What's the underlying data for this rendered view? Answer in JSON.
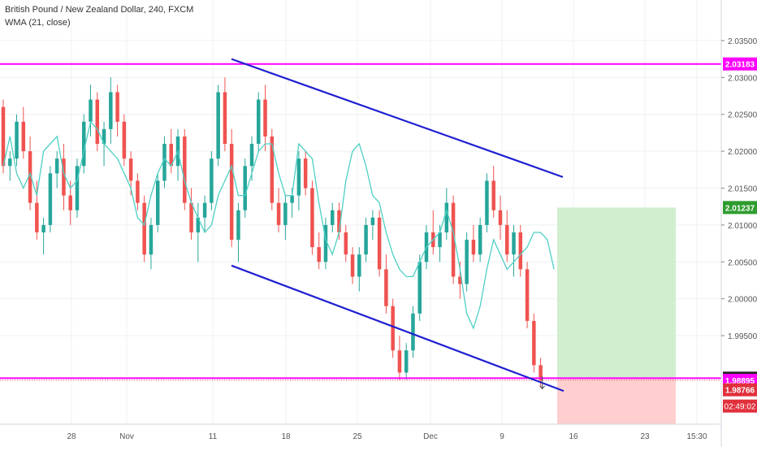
{
  "chart_data": {
    "type": "candlestick",
    "title": "British Pound / New Zealand Dollar, 240, FXCM",
    "indicator": "WMA (21, close)",
    "ylim": [
      1.983,
      2.0405
    ],
    "y_ticks": [
      "2.03500",
      "2.03000",
      "2.02500",
      "2.02000",
      "2.01500",
      "2.01000",
      "2.00500",
      "2.00000",
      "1.99500"
    ],
    "x_ticks": [
      "28",
      "Nov",
      "11",
      "18",
      "25",
      "Dec",
      "9",
      "16",
      "23",
      "15:30"
    ],
    "colors": {
      "up": "#26a69a",
      "down": "#ef5350",
      "wma": "#4dd0c4",
      "channel": "#1f1fd1",
      "level": "#ff00ff",
      "target": "#c9ebc7",
      "stop": "#ffc7c7",
      "current": "#ef5350"
    },
    "levels": [
      {
        "name": "resistance",
        "value": 2.03183,
        "label": "2.03183"
      },
      {
        "name": "support",
        "value": 1.98924,
        "label": "1.98924"
      }
    ],
    "current_price": {
      "value": 1.98895,
      "label": "1.98895"
    },
    "position": {
      "entry": 1.98924,
      "target": 2.01237,
      "target_label": "2.01237",
      "stop": 1.98766,
      "stop_label": "1.98766",
      "timer": "02:49:02"
    },
    "channel": {
      "upper": [
        {
          "x": "Nov 12",
          "y": 2.0325
        },
        {
          "x": "Dec 12",
          "y": 2.0165
        }
      ],
      "lower": [
        {
          "x": "Nov 12",
          "y": 2.0045
        },
        {
          "x": "Dec 14",
          "y": 1.9875
        }
      ]
    },
    "wma": [
      2.018,
      2.022,
      2.017,
      2.015,
      2.017,
      2.014,
      2.02,
      2.021,
      2.022,
      2.017,
      2.015,
      2.016,
      2.02,
      2.024,
      2.023,
      2.021,
      2.02,
      2.019,
      2.017,
      2.015,
      2.011,
      2.01,
      2.014,
      2.017,
      2.019,
      2.018,
      2.02,
      2.016,
      2.013,
      2.011,
      2.009,
      2.01,
      2.014,
      2.016,
      2.018,
      2.014,
      2.014,
      2.017,
      2.02,
      2.021,
      2.021,
      2.017,
      2.014,
      2.014,
      2.021,
      2.02,
      2.019,
      2.013,
      2.008,
      2.006,
      2.009,
      2.016,
      2.02,
      2.021,
      2.018,
      2.014,
      2.013,
      2.009,
      2.006,
      2.004,
      2.003,
      2.003,
      2.005,
      2.007,
      2.008,
      2.009,
      2.012,
      2.009,
      2.004,
      1.998,
      1.996,
      1.999,
      2.004,
      2.008,
      2.006,
      2.004,
      2.005,
      2.006,
      2.007,
      2.009,
      2.009,
      2.008,
      2.004
    ],
    "candles": [
      [
        2.026,
        2.027,
        2.017,
        2.018
      ],
      [
        2.018,
        2.02,
        2.016,
        2.019
      ],
      [
        2.019,
        2.025,
        2.018,
        2.024
      ],
      [
        2.024,
        2.026,
        2.019,
        2.02
      ],
      [
        2.02,
        2.022,
        2.012,
        2.013
      ],
      [
        2.013,
        2.016,
        2.008,
        2.009
      ],
      [
        2.009,
        2.011,
        2.006,
        2.01
      ],
      [
        2.01,
        2.018,
        2.009,
        2.017
      ],
      [
        2.017,
        2.02,
        2.015,
        2.019
      ],
      [
        2.019,
        2.021,
        2.012,
        2.014
      ],
      [
        2.014,
        2.016,
        2.01,
        2.012
      ],
      [
        2.012,
        2.019,
        2.011,
        2.018
      ],
      [
        2.018,
        2.025,
        2.017,
        2.024
      ],
      [
        2.024,
        2.029,
        2.022,
        2.027
      ],
      [
        2.027,
        2.028,
        2.02,
        2.021
      ],
      [
        2.021,
        2.024,
        2.018,
        2.023
      ],
      [
        2.023,
        2.03,
        2.021,
        2.028
      ],
      [
        2.028,
        2.029,
        2.022,
        2.024
      ],
      [
        2.024,
        2.025,
        2.018,
        2.019
      ],
      [
        2.019,
        2.02,
        2.014,
        2.016
      ],
      [
        2.016,
        2.017,
        2.012,
        2.013
      ],
      [
        2.013,
        2.014,
        2.005,
        2.006
      ],
      [
        2.006,
        2.011,
        2.004,
        2.01
      ],
      [
        2.01,
        2.017,
        2.009,
        2.016
      ],
      [
        2.016,
        2.022,
        2.015,
        2.021
      ],
      [
        2.021,
        2.023,
        2.017,
        2.018
      ],
      [
        2.018,
        2.023,
        2.016,
        2.022
      ],
      [
        2.022,
        2.023,
        2.012,
        2.013
      ],
      [
        2.013,
        2.015,
        2.008,
        2.009
      ],
      [
        2.009,
        2.013,
        2.005,
        2.011
      ],
      [
        2.011,
        2.014,
        2.009,
        2.013
      ],
      [
        2.013,
        2.02,
        2.012,
        2.019
      ],
      [
        2.019,
        2.029,
        2.018,
        2.028
      ],
      [
        2.028,
        2.03,
        2.02,
        2.021
      ],
      [
        2.021,
        2.023,
        2.007,
        2.008
      ],
      [
        2.008,
        2.013,
        2.005,
        2.012
      ],
      [
        2.012,
        2.019,
        2.011,
        2.018
      ],
      [
        2.018,
        2.022,
        2.016,
        2.021
      ],
      [
        2.021,
        2.028,
        2.02,
        2.027
      ],
      [
        2.027,
        2.029,
        2.02,
        2.022
      ],
      [
        2.022,
        2.023,
        2.012,
        2.013
      ],
      [
        2.013,
        2.015,
        2.009,
        2.01
      ],
      [
        2.01,
        2.014,
        2.008,
        2.013
      ],
      [
        2.013,
        2.015,
        2.011,
        2.014
      ],
      [
        2.014,
        2.02,
        2.012,
        2.019
      ],
      [
        2.019,
        2.02,
        2.014,
        2.015
      ],
      [
        2.015,
        2.016,
        2.006,
        2.007
      ],
      [
        2.007,
        2.009,
        2.004,
        2.005
      ],
      [
        2.005,
        2.011,
        2.004,
        2.01
      ],
      [
        2.01,
        2.013,
        2.009,
        2.012
      ],
      [
        2.012,
        2.013,
        2.008,
        2.009
      ],
      [
        2.009,
        2.01,
        2.005,
        2.006
      ],
      [
        2.006,
        2.007,
        2.002,
        2.003
      ],
      [
        2.003,
        2.007,
        2.001,
        2.006
      ],
      [
        2.006,
        2.011,
        2.005,
        2.01
      ],
      [
        2.01,
        2.012,
        2.008,
        2.011
      ],
      [
        2.011,
        2.012,
        2.003,
        2.004
      ],
      [
        2.004,
        2.006,
        1.998,
        1.999
      ],
      [
        1.999,
        2.0,
        1.992,
        1.993
      ],
      [
        1.993,
        1.995,
        1.989,
        1.99
      ],
      [
        1.99,
        1.994,
        1.989,
        1.993
      ],
      [
        1.993,
        1.999,
        1.992,
        1.998
      ],
      [
        1.998,
        2.006,
        1.997,
        2.005
      ],
      [
        2.005,
        2.01,
        2.004,
        2.009
      ],
      [
        2.009,
        2.012,
        2.006,
        2.007
      ],
      [
        2.007,
        2.01,
        2.005,
        2.009
      ],
      [
        2.009,
        2.015,
        2.008,
        2.013
      ],
      [
        2.013,
        2.014,
        2.002,
        2.003
      ],
      [
        2.003,
        2.005,
        2.0,
        2.002
      ],
      [
        2.002,
        2.009,
        2.001,
        2.008
      ],
      [
        2.008,
        2.01,
        2.005,
        2.006
      ],
      [
        2.006,
        2.011,
        2.005,
        2.01
      ],
      [
        2.01,
        2.017,
        2.009,
        2.016
      ],
      [
        2.016,
        2.018,
        2.011,
        2.012
      ],
      [
        2.012,
        2.014,
        2.008,
        2.01
      ],
      [
        2.01,
        2.012,
        2.005,
        2.006
      ],
      [
        2.006,
        2.01,
        2.003,
        2.009
      ],
      [
        2.009,
        2.01,
        2.003,
        2.004
      ],
      [
        2.004,
        2.005,
        1.996,
        1.997
      ],
      [
        1.997,
        1.998,
        1.99,
        1.991
      ],
      [
        1.991,
        1.992,
        1.988,
        1.989
      ]
    ]
  }
}
